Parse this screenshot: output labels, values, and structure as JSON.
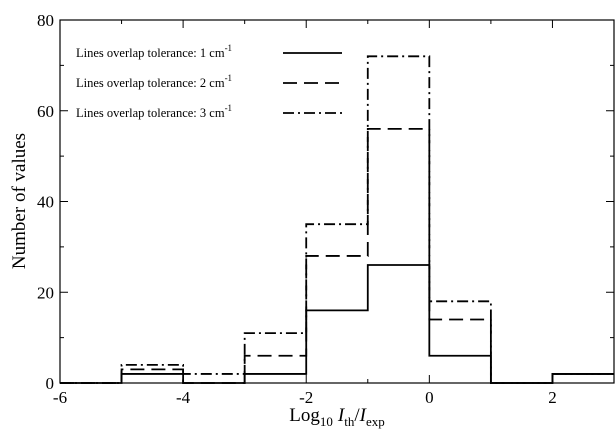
{
  "chart_data": {
    "type": "histogram",
    "xlabel": {
      "base": "Log",
      "base_sub": "10",
      "num": "I",
      "num_sub": "th",
      "sep": "/",
      "den": "I",
      "den_sub": "exp"
    },
    "ylabel": "Number of values",
    "xlim": [
      -6,
      3
    ],
    "ylim": [
      0,
      80
    ],
    "xticks": [
      -6,
      -4,
      -2,
      0,
      2
    ],
    "yticks": [
      0,
      20,
      40,
      60,
      80
    ],
    "grid": false,
    "legend_position": "top-left",
    "bin_edges": [
      -6,
      -5,
      -4,
      -3,
      -2,
      -1,
      0,
      1,
      2,
      3
    ],
    "series": [
      {
        "name": "Lines overlap tolerance: 1 cm",
        "unit_sup": "-1",
        "style": "solid",
        "values": [
          0,
          2,
          0,
          2,
          16,
          26,
          6,
          0,
          2
        ]
      },
      {
        "name": "Lines overlap tolerance: 2 cm",
        "unit_sup": "-1",
        "style": "dashed",
        "values": [
          0,
          3,
          0,
          6,
          28,
          56,
          14,
          0,
          2
        ]
      },
      {
        "name": "Lines overlap tolerance: 3 cm",
        "unit_sup": "-1",
        "style": "dashdot",
        "values": [
          0,
          4,
          2,
          11,
          35,
          72,
          18,
          0,
          2
        ]
      }
    ]
  }
}
